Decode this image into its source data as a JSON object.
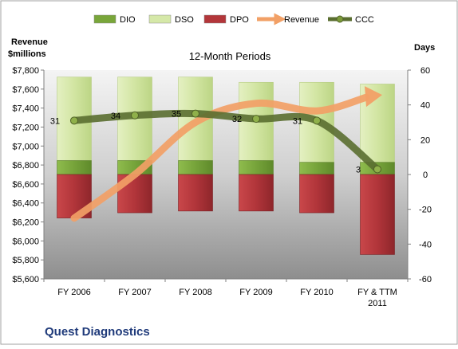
{
  "chart_data": {
    "type": "bar",
    "title": "12-Month Periods",
    "company": "Quest Diagnostics",
    "y_left_label": "Revenue\n$millions",
    "y_right_label": "Days",
    "categories": [
      "FY 2006",
      "FY 2007",
      "FY 2008",
      "FY 2009",
      "FY 2010",
      "FY & TTM\n2011"
    ],
    "left_axis": {
      "ylim": [
        5600,
        7800
      ],
      "ticks": [
        "$5,600",
        "$5,800",
        "$6,000",
        "$6,200",
        "$6,400",
        "$6,600",
        "$6,800",
        "$7,000",
        "$7,200",
        "$7,400",
        "$7,600",
        "$7,800"
      ]
    },
    "right_axis": {
      "ylim": [
        -60,
        60
      ],
      "ticks": [
        "-60",
        "-40",
        "-20",
        "0",
        "20",
        "40",
        "60"
      ]
    },
    "legend": [
      "DIO",
      "DSO",
      "DPO",
      "Revenue",
      "CCC"
    ],
    "legend_position": "top",
    "grid": false,
    "series": [
      {
        "name": "DIO",
        "axis": "right",
        "values": [
          8,
          8,
          8,
          8,
          7,
          7
        ],
        "color": "#7aa83c"
      },
      {
        "name": "DSO",
        "axis": "right",
        "values": [
          48,
          48,
          48,
          45,
          46,
          45
        ],
        "color": "#d5e8a8"
      },
      {
        "name": "DPO",
        "axis": "right",
        "values": [
          -25,
          -22,
          -21,
          -21,
          -22,
          -46
        ],
        "color": "#b3363a"
      },
      {
        "name": "Revenue",
        "axis": "left",
        "values": [
          6240,
          6700,
          7250,
          7450,
          7370,
          7530
        ],
        "color": "#f08a3c"
      },
      {
        "name": "CCC",
        "axis": "right",
        "values": [
          31,
          34,
          35,
          32,
          31,
          3
        ],
        "color": "#5a6e30"
      }
    ],
    "data_labels": [
      "31",
      "34",
      "35",
      "32",
      "31",
      "3"
    ]
  }
}
